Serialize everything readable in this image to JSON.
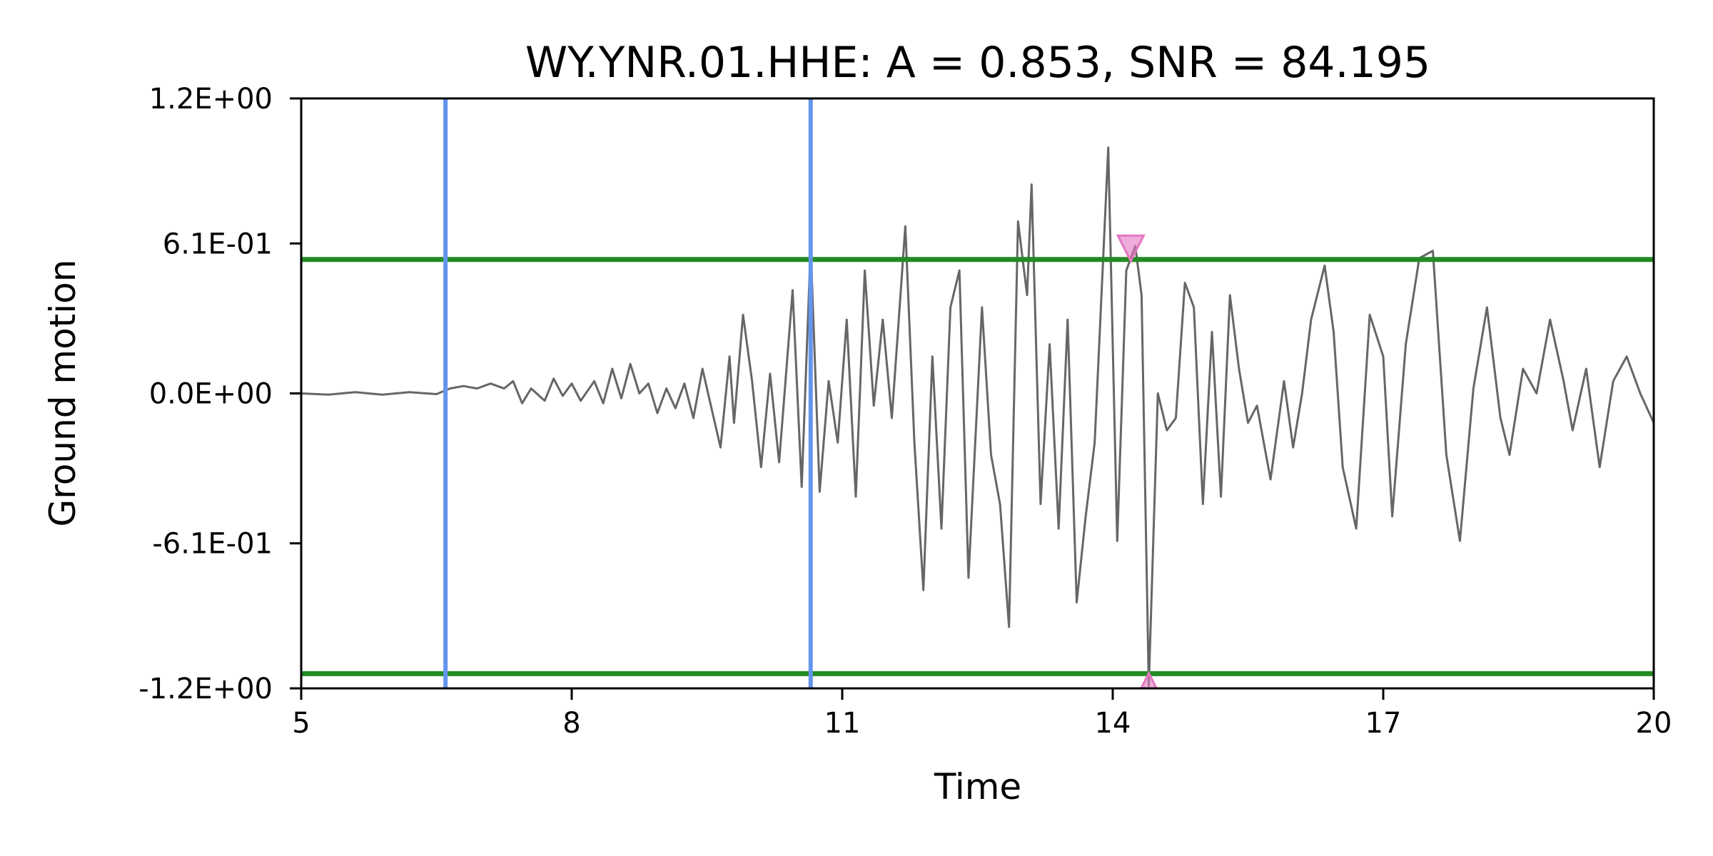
{
  "chart_data": {
    "type": "line",
    "title": "WY.YNR.01.HHE: A = 0.853, SNR = 84.195",
    "xlabel": "Time",
    "ylabel": "Ground motion",
    "xlim": [
      5,
      20
    ],
    "ylim": [
      -1.2,
      1.2
    ],
    "x_ticks": [
      5,
      8,
      11,
      14,
      17,
      20
    ],
    "x_tick_labels": [
      "5",
      "8",
      "11",
      "14",
      "17",
      "20"
    ],
    "y_ticks": [
      1.2,
      0.61,
      0.0,
      -0.61,
      -1.2
    ],
    "y_tick_labels": [
      "1.2E+00",
      "6.1E-01",
      "0.0E+00",
      "-6.1E-01",
      "-1.2E+00"
    ],
    "grid": false,
    "legend": "none",
    "colors": {
      "waveform": "#666666",
      "window_lines": "#6495ed",
      "threshold_lines": "#228b22",
      "markers": "#e377c2"
    },
    "vertical_lines": [
      6.6,
      10.65
    ],
    "horizontal_lines": [
      0.545,
      -1.14
    ],
    "markers": [
      {
        "x": 14.2,
        "y": 0.59,
        "shape": "triangle-down"
      },
      {
        "x": 14.4,
        "y": -1.19,
        "shape": "triangle-up"
      }
    ],
    "series": [
      {
        "points": [
          [
            5.0,
            0.0
          ],
          [
            5.3,
            -0.005
          ],
          [
            5.6,
            0.005
          ],
          [
            5.9,
            -0.005
          ],
          [
            6.2,
            0.005
          ],
          [
            6.5,
            -0.003
          ],
          [
            6.65,
            0.02
          ],
          [
            6.8,
            0.03
          ],
          [
            6.95,
            0.02
          ],
          [
            7.1,
            0.04
          ],
          [
            7.25,
            0.02
          ],
          [
            7.35,
            0.05
          ],
          [
            7.45,
            -0.04
          ],
          [
            7.55,
            0.02
          ],
          [
            7.7,
            -0.03
          ],
          [
            7.8,
            0.06
          ],
          [
            7.9,
            -0.01
          ],
          [
            8.0,
            0.04
          ],
          [
            8.1,
            -0.03
          ],
          [
            8.25,
            0.05
          ],
          [
            8.35,
            -0.04
          ],
          [
            8.45,
            0.1
          ],
          [
            8.55,
            -0.02
          ],
          [
            8.65,
            0.12
          ],
          [
            8.75,
            0.0
          ],
          [
            8.85,
            0.04
          ],
          [
            8.95,
            -0.08
          ],
          [
            9.05,
            0.02
          ],
          [
            9.15,
            -0.06
          ],
          [
            9.25,
            0.04
          ],
          [
            9.35,
            -0.1
          ],
          [
            9.45,
            0.1
          ],
          [
            9.55,
            -0.06
          ],
          [
            9.65,
            -0.22
          ],
          [
            9.75,
            0.15
          ],
          [
            9.8,
            -0.12
          ],
          [
            9.9,
            0.32
          ],
          [
            10.0,
            0.05
          ],
          [
            10.1,
            -0.3
          ],
          [
            10.2,
            0.08
          ],
          [
            10.3,
            -0.28
          ],
          [
            10.45,
            0.42
          ],
          [
            10.55,
            -0.38
          ],
          [
            10.65,
            0.6
          ],
          [
            10.75,
            -0.4
          ],
          [
            10.85,
            0.05
          ],
          [
            10.95,
            -0.2
          ],
          [
            11.05,
            0.3
          ],
          [
            11.15,
            -0.42
          ],
          [
            11.25,
            0.5
          ],
          [
            11.35,
            -0.05
          ],
          [
            11.45,
            0.3
          ],
          [
            11.55,
            -0.1
          ],
          [
            11.7,
            0.68
          ],
          [
            11.8,
            -0.2
          ],
          [
            11.9,
            -0.8
          ],
          [
            12.0,
            0.15
          ],
          [
            12.1,
            -0.55
          ],
          [
            12.2,
            0.35
          ],
          [
            12.3,
            0.5
          ],
          [
            12.4,
            -0.75
          ],
          [
            12.55,
            0.35
          ],
          [
            12.65,
            -0.25
          ],
          [
            12.75,
            -0.45
          ],
          [
            12.85,
            -0.95
          ],
          [
            12.95,
            0.7
          ],
          [
            13.05,
            0.4
          ],
          [
            13.1,
            0.85
          ],
          [
            13.2,
            -0.45
          ],
          [
            13.3,
            0.2
          ],
          [
            13.4,
            -0.55
          ],
          [
            13.5,
            0.3
          ],
          [
            13.6,
            -0.85
          ],
          [
            13.7,
            -0.5
          ],
          [
            13.8,
            -0.2
          ],
          [
            13.9,
            0.6
          ],
          [
            13.95,
            1.0
          ],
          [
            14.05,
            -0.6
          ],
          [
            14.15,
            0.5
          ],
          [
            14.25,
            0.6
          ],
          [
            14.32,
            0.4
          ],
          [
            14.4,
            -1.19
          ],
          [
            14.5,
            0.0
          ],
          [
            14.6,
            -0.15
          ],
          [
            14.7,
            -0.1
          ],
          [
            14.8,
            0.45
          ],
          [
            14.9,
            0.35
          ],
          [
            15.0,
            -0.45
          ],
          [
            15.1,
            0.25
          ],
          [
            15.2,
            -0.42
          ],
          [
            15.3,
            0.4
          ],
          [
            15.4,
            0.1
          ],
          [
            15.5,
            -0.12
          ],
          [
            15.6,
            -0.05
          ],
          [
            15.75,
            -0.35
          ],
          [
            15.9,
            0.05
          ],
          [
            16.0,
            -0.22
          ],
          [
            16.1,
            0.0
          ],
          [
            16.2,
            0.3
          ],
          [
            16.35,
            0.52
          ],
          [
            16.45,
            0.25
          ],
          [
            16.55,
            -0.3
          ],
          [
            16.7,
            -0.55
          ],
          [
            16.85,
            0.32
          ],
          [
            17.0,
            0.15
          ],
          [
            17.1,
            -0.5
          ],
          [
            17.25,
            0.2
          ],
          [
            17.4,
            0.55
          ],
          [
            17.55,
            0.58
          ],
          [
            17.7,
            -0.25
          ],
          [
            17.85,
            -0.6
          ],
          [
            18.0,
            0.02
          ],
          [
            18.15,
            0.35
          ],
          [
            18.3,
            -0.1
          ],
          [
            18.4,
            -0.25
          ],
          [
            18.55,
            0.1
          ],
          [
            18.7,
            0.0
          ],
          [
            18.85,
            0.3
          ],
          [
            19.0,
            0.05
          ],
          [
            19.1,
            -0.15
          ],
          [
            19.25,
            0.1
          ],
          [
            19.4,
            -0.3
          ],
          [
            19.55,
            0.05
          ],
          [
            19.7,
            0.15
          ],
          [
            19.85,
            0.0
          ],
          [
            20.0,
            -0.12
          ]
        ]
      }
    ]
  }
}
